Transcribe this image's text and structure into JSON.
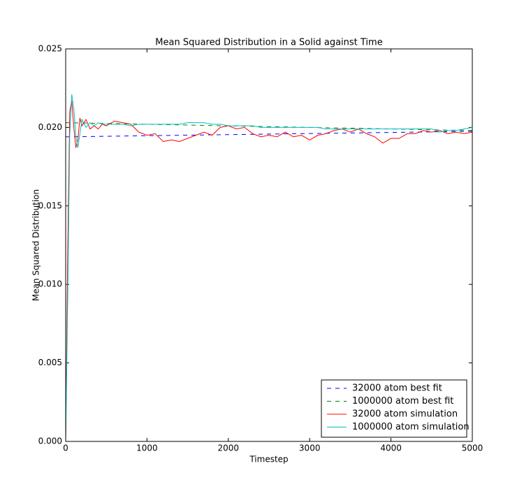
{
  "chart_data": {
    "type": "line",
    "title": "Mean Squared Distribution in a Solid against Time",
    "xlabel": "Timestep",
    "ylabel": "Mean Squared Distribution",
    "xlim": [
      0,
      5000
    ],
    "xticks": [
      0,
      1000,
      2000,
      3000,
      4000,
      5000
    ],
    "ylim": [
      0,
      0.025
    ],
    "yticks": [
      {
        "value": 0,
        "label": "0.000"
      },
      {
        "value": 0.005,
        "label": "0.005"
      },
      {
        "value": 0.01,
        "label": "0.010"
      },
      {
        "value": 0.015,
        "label": "0.015"
      },
      {
        "value": 0.02,
        "label": "0.020"
      },
      {
        "value": 0.025,
        "label": "0.025"
      }
    ],
    "legend": "lower right",
    "series": [
      {
        "name": "32000 atom best fit",
        "color": "#0000ff",
        "linestyle": "dashed",
        "x": [
          0,
          5000
        ],
        "values": [
          0.0194,
          0.01975
        ]
      },
      {
        "name": "1000000 atom best fit",
        "color": "#008000",
        "linestyle": "dashed",
        "x": [
          0,
          5000
        ],
        "values": [
          0.0203,
          0.0198
        ]
      },
      {
        "name": "32000 atom simulation",
        "color": "#ff0000",
        "linestyle": "solid",
        "x": [
          0,
          25,
          50,
          75,
          100,
          125,
          150,
          175,
          200,
          250,
          300,
          350,
          400,
          450,
          500,
          600,
          700,
          800,
          900,
          1000,
          1100,
          1200,
          1300,
          1400,
          1500,
          1600,
          1700,
          1800,
          1900,
          2000,
          2100,
          2200,
          2300,
          2400,
          2500,
          2600,
          2700,
          2800,
          2900,
          3000,
          3100,
          3200,
          3300,
          3400,
          3500,
          3600,
          3700,
          3800,
          3900,
          4000,
          4100,
          4200,
          4300,
          4400,
          4500,
          4600,
          4700,
          4800,
          4900,
          5000
        ],
        "values": [
          0,
          0.012,
          0.021,
          0.0217,
          0.02,
          0.0187,
          0.0192,
          0.0206,
          0.0201,
          0.0205,
          0.0199,
          0.0201,
          0.0199,
          0.0202,
          0.0201,
          0.0204,
          0.0203,
          0.0202,
          0.0197,
          0.0195,
          0.0196,
          0.0191,
          0.0192,
          0.0191,
          0.0193,
          0.0195,
          0.0197,
          0.0195,
          0.02,
          0.0201,
          0.0199,
          0.02,
          0.0196,
          0.0194,
          0.0195,
          0.0194,
          0.0197,
          0.0194,
          0.0195,
          0.0192,
          0.0195,
          0.0196,
          0.0198,
          0.0199,
          0.0197,
          0.0199,
          0.0196,
          0.0194,
          0.019,
          0.0193,
          0.0193,
          0.0196,
          0.0196,
          0.0198,
          0.0197,
          0.0198,
          0.0196,
          0.0197,
          0.0196,
          0.0197
        ]
      },
      {
        "name": "1000000 atom simulation",
        "color": "#00bfbf",
        "linestyle": "solid",
        "x": [
          0,
          25,
          50,
          75,
          100,
          125,
          150,
          175,
          200,
          250,
          300,
          350,
          400,
          450,
          500,
          600,
          700,
          800,
          900,
          1000,
          1100,
          1200,
          1300,
          1400,
          1500,
          1600,
          1700,
          1800,
          1900,
          2000,
          2100,
          2200,
          2300,
          2400,
          2500,
          2600,
          2700,
          2800,
          2900,
          3000,
          3100,
          3200,
          3300,
          3400,
          3500,
          3600,
          3700,
          3800,
          3900,
          4000,
          4100,
          4200,
          4300,
          4400,
          4500,
          4600,
          4700,
          4800,
          4900,
          5000
        ],
        "values": [
          0,
          0.009,
          0.0195,
          0.0221,
          0.0212,
          0.0195,
          0.0187,
          0.0196,
          0.0205,
          0.02,
          0.0203,
          0.0201,
          0.0203,
          0.0202,
          0.0202,
          0.0202,
          0.0202,
          0.0201,
          0.0202,
          0.0202,
          0.0202,
          0.0202,
          0.0202,
          0.0202,
          0.0203,
          0.0203,
          0.0203,
          0.0202,
          0.0202,
          0.0201,
          0.0201,
          0.0201,
          0.0201,
          0.02,
          0.02,
          0.02,
          0.02,
          0.02,
          0.02,
          0.02,
          0.02,
          0.0199,
          0.0199,
          0.0199,
          0.0199,
          0.0199,
          0.0199,
          0.0199,
          0.0199,
          0.0199,
          0.0199,
          0.0199,
          0.0199,
          0.0199,
          0.0199,
          0.0197,
          0.0198,
          0.0198,
          0.0199,
          0.02
        ]
      }
    ]
  }
}
